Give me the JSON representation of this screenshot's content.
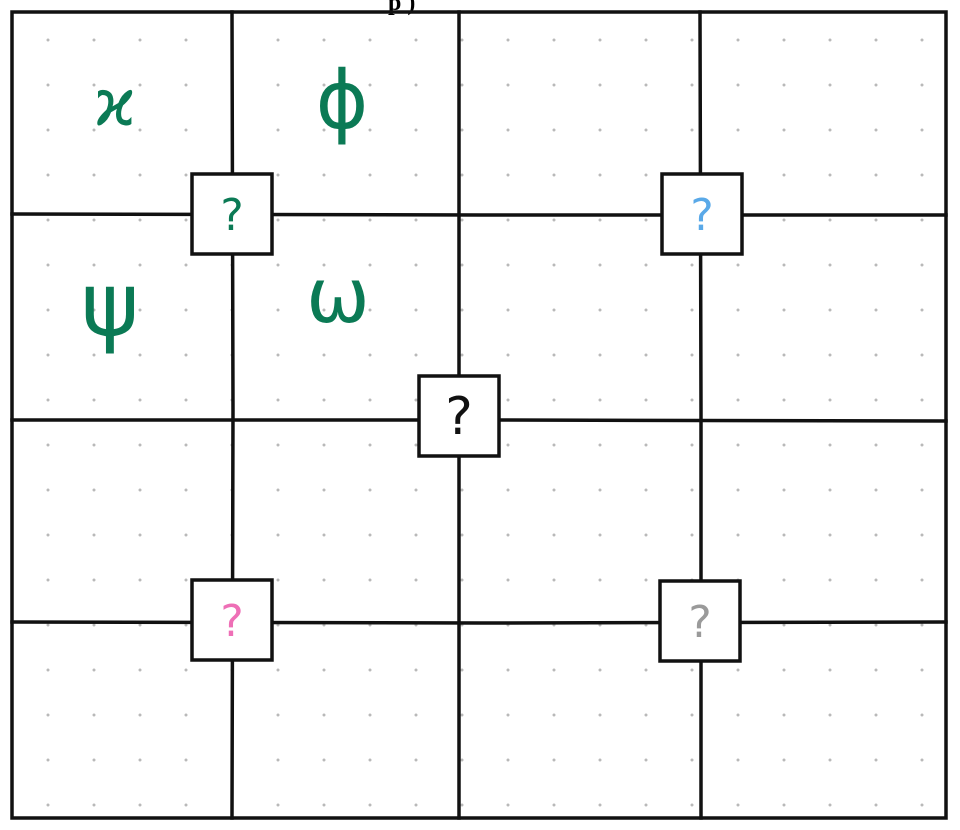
{
  "title_fragment": "p      )",
  "colors": {
    "grid_line": "#111111",
    "dot": "#b9b9b9",
    "symbol_green": "#0b7a55",
    "q_black": "#111111",
    "q_green": "#0b7a55",
    "q_blue": "#5aa9e8",
    "q_pink": "#ee6fb6",
    "q_gray": "#9a9a9a"
  },
  "grid": {
    "symbols": [
      {
        "id": "kappa",
        "glyph": "ϰ"
      },
      {
        "id": "phi",
        "glyph": "ϕ"
      },
      {
        "id": "psi",
        "glyph": "ψ"
      },
      {
        "id": "omega",
        "glyph": "ω"
      }
    ],
    "question_boxes": [
      {
        "id": "top-left",
        "glyph": "?",
        "color": "q_green"
      },
      {
        "id": "top-right",
        "glyph": "?",
        "color": "q_blue"
      },
      {
        "id": "center",
        "glyph": "?",
        "color": "q_black"
      },
      {
        "id": "bottom-left",
        "glyph": "?",
        "color": "q_pink"
      },
      {
        "id": "bottom-right",
        "glyph": "?",
        "color": "q_gray"
      }
    ]
  }
}
